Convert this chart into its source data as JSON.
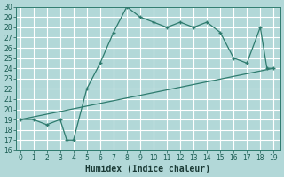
{
  "xlabel": "Humidex (Indice chaleur)",
  "background_color": "#b2d8d8",
  "grid_color": "#ffffff",
  "line_color": "#2e7b6e",
  "ylim": [
    16,
    30
  ],
  "xlim": [
    -0.3,
    19.5
  ],
  "yticks": [
    16,
    17,
    18,
    19,
    20,
    21,
    22,
    23,
    24,
    25,
    26,
    27,
    28,
    29,
    30
  ],
  "xticks": [
    0,
    1,
    2,
    3,
    4,
    5,
    6,
    7,
    8,
    9,
    10,
    11,
    12,
    13,
    14,
    15,
    16,
    17,
    18,
    19
  ],
  "line1_x": [
    0,
    1,
    2,
    3,
    3.5,
    4,
    5,
    6,
    7,
    8,
    9,
    10,
    11,
    12,
    13,
    14,
    15,
    16,
    17,
    18,
    18.5,
    19
  ],
  "line1_y": [
    19,
    19,
    18.5,
    19,
    17,
    17,
    22,
    24.5,
    27.5,
    30,
    29,
    28.5,
    28,
    28.5,
    28,
    28.5,
    27.5,
    25,
    24.5,
    28,
    24,
    24
  ],
  "line2_x": [
    0,
    19
  ],
  "line2_y": [
    19,
    24
  ],
  "tick_fontsize": 5.5,
  "xlabel_fontsize": 7.0
}
